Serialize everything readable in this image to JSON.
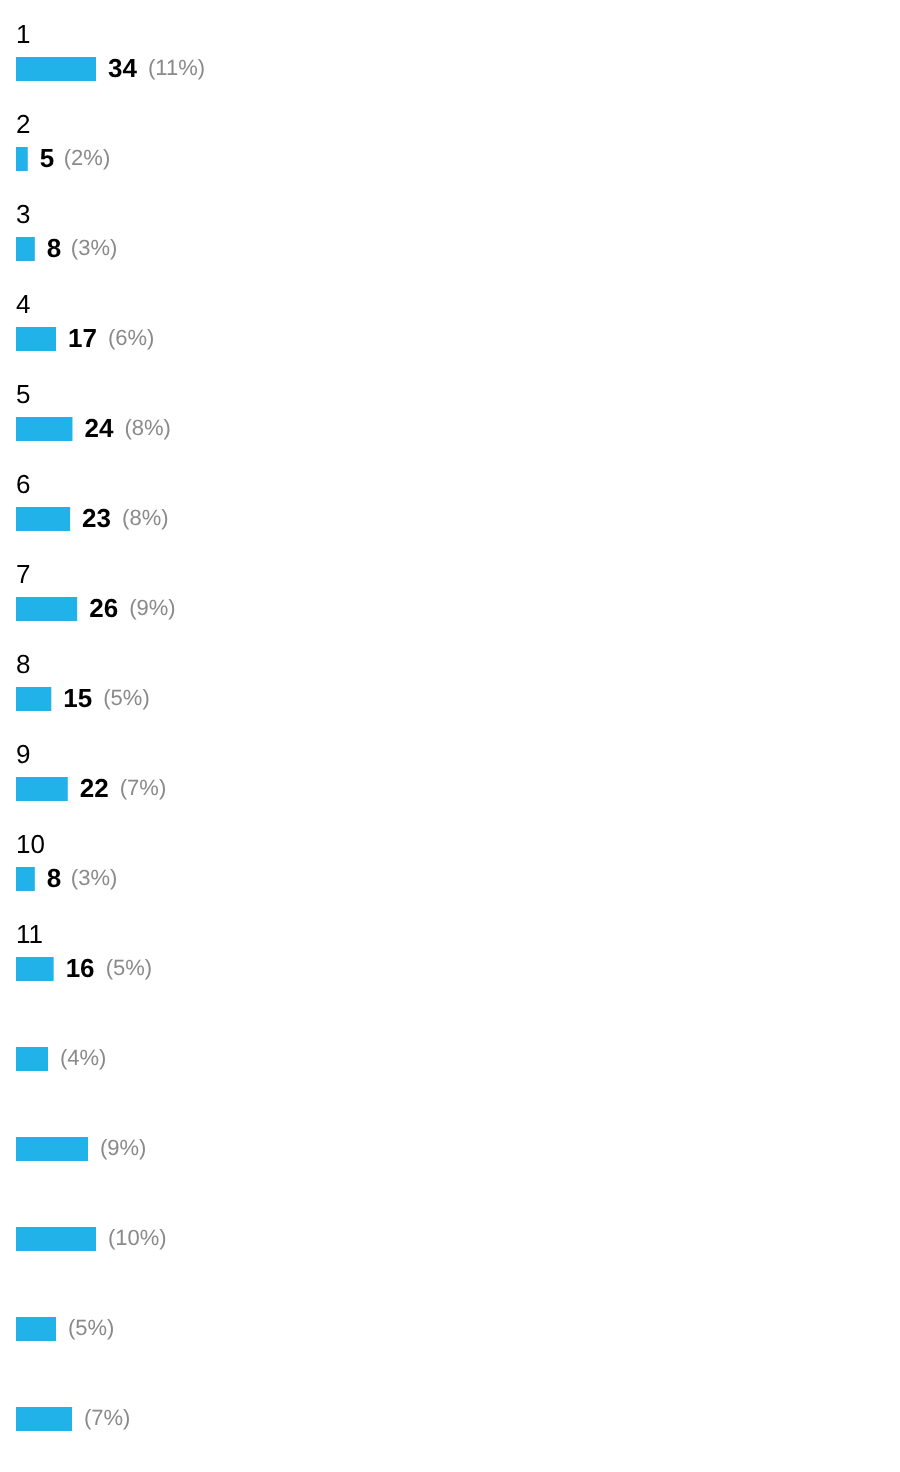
{
  "chart_data": [
    {
      "type": "bar",
      "orientation": "horizontal",
      "color": "#22b2ea",
      "categories": [
        "1",
        "2",
        "3",
        "4",
        "5",
        "6",
        "7",
        "8",
        "9",
        "10",
        "11"
      ],
      "values": [
        34,
        5,
        8,
        17,
        24,
        23,
        26,
        15,
        22,
        8,
        16
      ],
      "data_labels": true,
      "annotations": [
        {
          "text": "(11%)",
          "x": 34,
          "y": "1"
        },
        {
          "text": "(2%)",
          "x": 5,
          "y": "2"
        },
        {
          "text": "(3%)",
          "x": 8,
          "y": "3"
        },
        {
          "text": "(6%)",
          "x": 17,
          "y": "4"
        },
        {
          "text": "(8%)",
          "x": 24,
          "y": "5"
        },
        {
          "text": "(8%)",
          "x": 23,
          "y": "6"
        },
        {
          "text": "(9%)",
          "x": 26,
          "y": "7"
        },
        {
          "text": "(5%)",
          "x": 15,
          "y": "8"
        },
        {
          "text": "(7%)",
          "x": 22,
          "y": "9"
        },
        {
          "text": "(3%)",
          "x": 8,
          "y": "10"
        },
        {
          "text": "(5%)",
          "x": 16,
          "y": "11"
        }
      ]
    },
    {
      "type": "bar",
      "orientation": "horizontal",
      "color": "#22b2ea",
      "categories": [
        null,
        null,
        null,
        null,
        null
      ],
      "values": [
        4,
        9,
        10,
        5,
        7
      ],
      "value_labels": [
        "(4%)",
        "(9%)",
        "(10%)",
        "(5%)",
        "(7%)"
      ]
    }
  ]
}
